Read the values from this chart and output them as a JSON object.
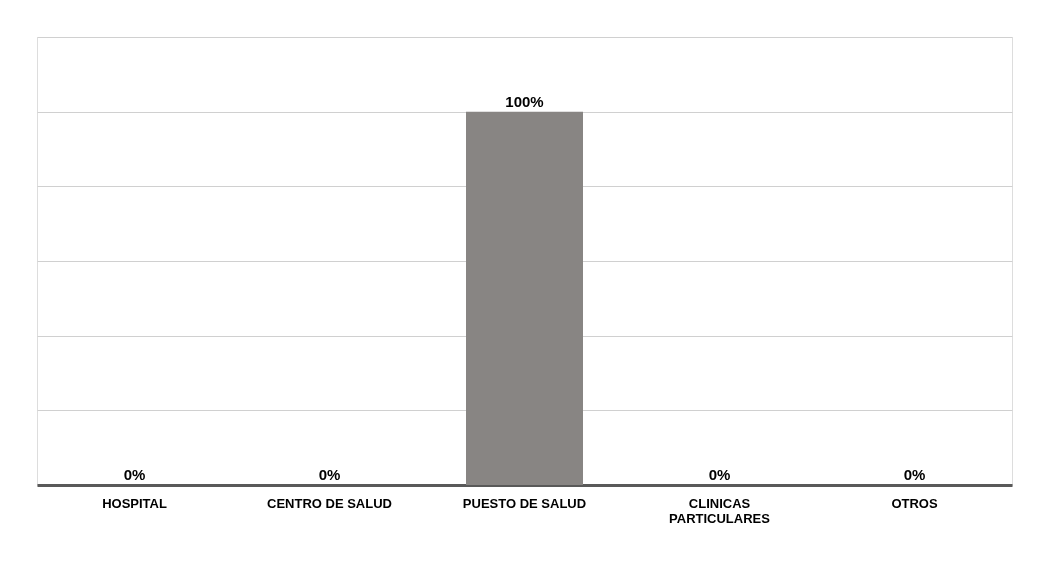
{
  "chart_data": {
    "type": "bar",
    "categories": [
      "HOSPITAL",
      "CENTRO DE SALUD",
      "PUESTO DE SALUD",
      "CLINICAS PARTICULARES",
      "OTROS"
    ],
    "values": [
      0,
      0,
      100,
      0,
      0
    ],
    "value_labels": [
      "0%",
      "0%",
      "100%",
      "0%",
      "0%"
    ],
    "color": "#888583",
    "tick_labels": "x",
    "grid": "y"
  }
}
